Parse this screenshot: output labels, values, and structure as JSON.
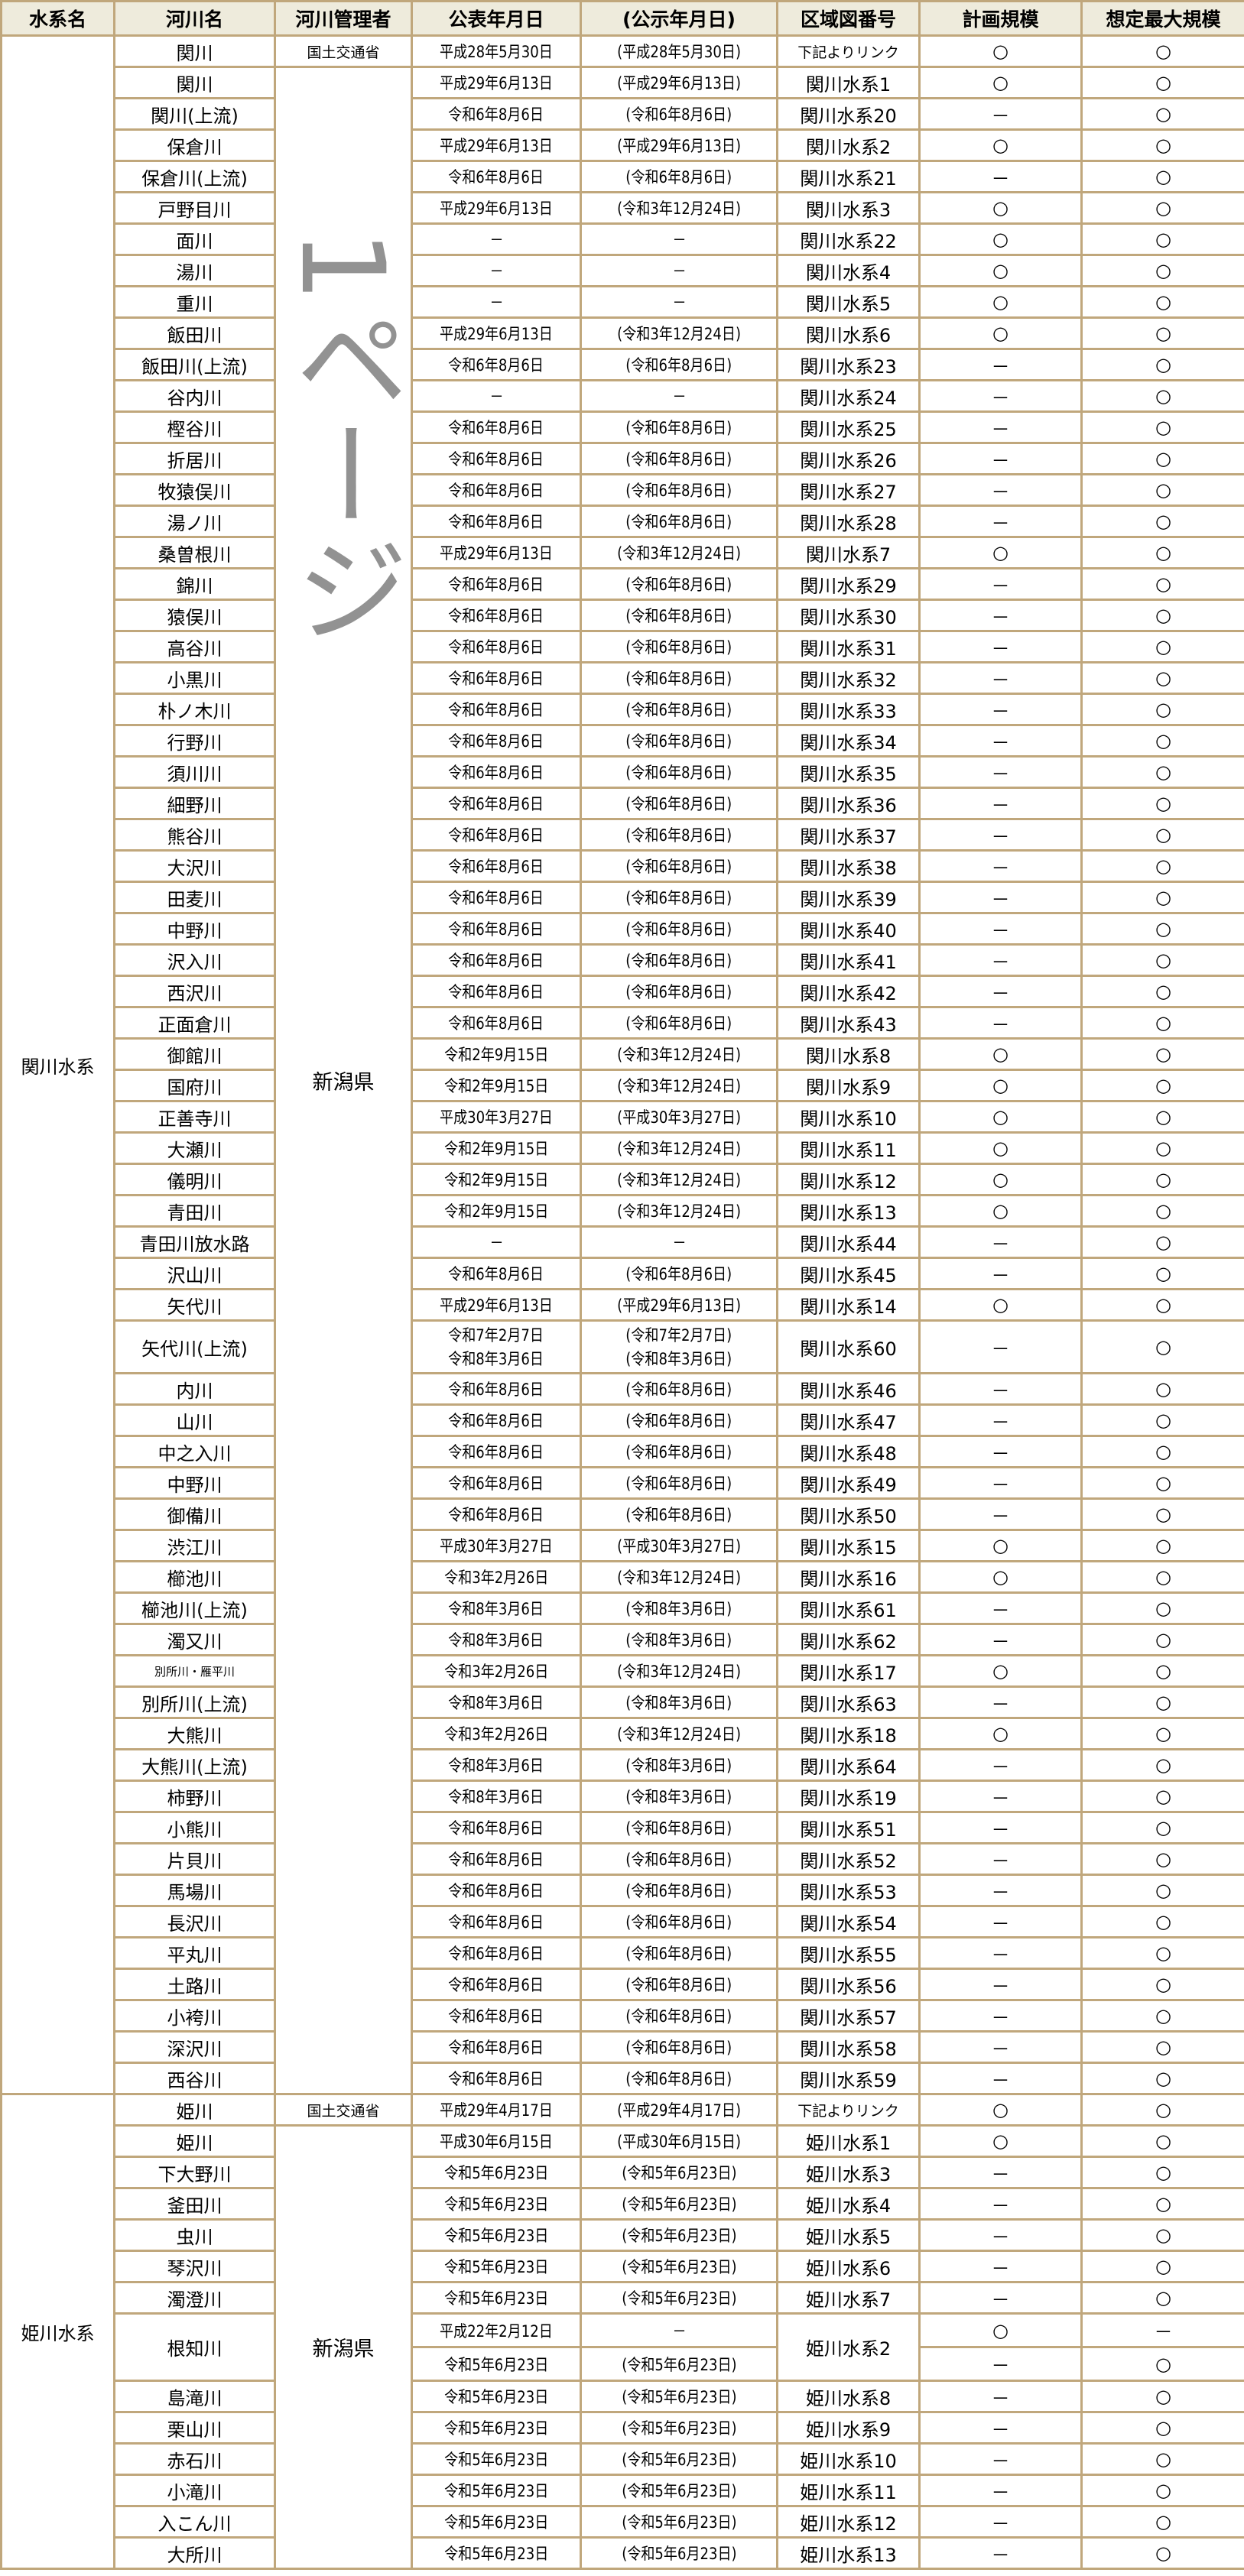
{
  "headers": [
    "水系名",
    "河川名",
    "河川管理者",
    "公表年月日",
    "(公示年月日)",
    "区域図番号",
    "計画規模",
    "想定最大規模"
  ],
  "watermark": "1ページ",
  "colors": {
    "header_bg": "#eeebdc",
    "border": "#c0a77c"
  },
  "groups": [
    {
      "system": "関川水系",
      "national_manager": "国土交通省",
      "prefecture_manager": "新潟県",
      "rows": [
        {
          "river": "関川",
          "published": [
            "平成28年5月30日"
          ],
          "notice": [
            "(平成28年5月30日)"
          ],
          "map": "下記よりリンク",
          "plan": "○",
          "max": "○"
        },
        {
          "river": "関川",
          "published": [
            "平成29年6月13日"
          ],
          "notice": [
            "(平成29年6月13日)"
          ],
          "map": "関川水系1",
          "plan": "○",
          "max": "○"
        },
        {
          "river": "関川(上流)",
          "published": [
            "令和6年8月6日"
          ],
          "notice": [
            "(令和6年8月6日)"
          ],
          "map": "関川水系20",
          "plan": "－",
          "max": "○"
        },
        {
          "river": "保倉川",
          "published": [
            "平成29年6月13日"
          ],
          "notice": [
            "(平成29年6月13日)"
          ],
          "map": "関川水系2",
          "plan": "○",
          "max": "○"
        },
        {
          "river": "保倉川(上流)",
          "published": [
            "令和6年8月6日"
          ],
          "notice": [
            "(令和6年8月6日)"
          ],
          "map": "関川水系21",
          "plan": "－",
          "max": "○"
        },
        {
          "river": "戸野目川",
          "published": [
            "平成29年6月13日"
          ],
          "notice": [
            "(令和3年12月24日)"
          ],
          "map": "関川水系3",
          "plan": "○",
          "max": "○"
        },
        {
          "river": "面川",
          "published": [
            "－"
          ],
          "notice": [
            "－"
          ],
          "map": "関川水系22",
          "plan": "○",
          "max": "○"
        },
        {
          "river": "湯川",
          "published": [
            "－"
          ],
          "notice": [
            "－"
          ],
          "map": "関川水系4",
          "plan": "○",
          "max": "○"
        },
        {
          "river": "重川",
          "published": [
            "－"
          ],
          "notice": [
            "－"
          ],
          "map": "関川水系5",
          "plan": "○",
          "max": "○"
        },
        {
          "river": "飯田川",
          "published": [
            "平成29年6月13日"
          ],
          "notice": [
            "(令和3年12月24日)"
          ],
          "map": "関川水系6",
          "plan": "○",
          "max": "○"
        },
        {
          "river": "飯田川(上流)",
          "published": [
            "令和6年8月6日"
          ],
          "notice": [
            "(令和6年8月6日)"
          ],
          "map": "関川水系23",
          "plan": "－",
          "max": "○"
        },
        {
          "river": "谷内川",
          "published": [
            "－"
          ],
          "notice": [
            "－"
          ],
          "map": "関川水系24",
          "plan": "－",
          "max": "○"
        },
        {
          "river": "樫谷川",
          "published": [
            "令和6年8月6日"
          ],
          "notice": [
            "(令和6年8月6日)"
          ],
          "map": "関川水系25",
          "plan": "－",
          "max": "○"
        },
        {
          "river": "折居川",
          "published": [
            "令和6年8月6日"
          ],
          "notice": [
            "(令和6年8月6日)"
          ],
          "map": "関川水系26",
          "plan": "－",
          "max": "○"
        },
        {
          "river": "牧猿俣川",
          "published": [
            "令和6年8月6日"
          ],
          "notice": [
            "(令和6年8月6日)"
          ],
          "map": "関川水系27",
          "plan": "－",
          "max": "○"
        },
        {
          "river": "湯ノ川",
          "published": [
            "令和6年8月6日"
          ],
          "notice": [
            "(令和6年8月6日)"
          ],
          "map": "関川水系28",
          "plan": "－",
          "max": "○"
        },
        {
          "river": "桑曽根川",
          "published": [
            "平成29年6月13日"
          ],
          "notice": [
            "(令和3年12月24日)"
          ],
          "map": "関川水系7",
          "plan": "○",
          "max": "○"
        },
        {
          "river": "錦川",
          "published": [
            "令和6年8月6日"
          ],
          "notice": [
            "(令和6年8月6日)"
          ],
          "map": "関川水系29",
          "plan": "－",
          "max": "○"
        },
        {
          "river": "猿俣川",
          "published": [
            "令和6年8月6日"
          ],
          "notice": [
            "(令和6年8月6日)"
          ],
          "map": "関川水系30",
          "plan": "－",
          "max": "○"
        },
        {
          "river": "高谷川",
          "published": [
            "令和6年8月6日"
          ],
          "notice": [
            "(令和6年8月6日)"
          ],
          "map": "関川水系31",
          "plan": "－",
          "max": "○"
        },
        {
          "river": "小黒川",
          "published": [
            "令和6年8月6日"
          ],
          "notice": [
            "(令和6年8月6日)"
          ],
          "map": "関川水系32",
          "plan": "－",
          "max": "○"
        },
        {
          "river": "朴ノ木川",
          "published": [
            "令和6年8月6日"
          ],
          "notice": [
            "(令和6年8月6日)"
          ],
          "map": "関川水系33",
          "plan": "－",
          "max": "○"
        },
        {
          "river": "行野川",
          "published": [
            "令和6年8月6日"
          ],
          "notice": [
            "(令和6年8月6日)"
          ],
          "map": "関川水系34",
          "plan": "－",
          "max": "○"
        },
        {
          "river": "須川川",
          "published": [
            "令和6年8月6日"
          ],
          "notice": [
            "(令和6年8月6日)"
          ],
          "map": "関川水系35",
          "plan": "－",
          "max": "○"
        },
        {
          "river": "細野川",
          "published": [
            "令和6年8月6日"
          ],
          "notice": [
            "(令和6年8月6日)"
          ],
          "map": "関川水系36",
          "plan": "－",
          "max": "○"
        },
        {
          "river": "熊谷川",
          "published": [
            "令和6年8月6日"
          ],
          "notice": [
            "(令和6年8月6日)"
          ],
          "map": "関川水系37",
          "plan": "－",
          "max": "○"
        },
        {
          "river": "大沢川",
          "published": [
            "令和6年8月6日"
          ],
          "notice": [
            "(令和6年8月6日)"
          ],
          "map": "関川水系38",
          "plan": "－",
          "max": "○"
        },
        {
          "river": "田麦川",
          "published": [
            "令和6年8月6日"
          ],
          "notice": [
            "(令和6年8月6日)"
          ],
          "map": "関川水系39",
          "plan": "－",
          "max": "○"
        },
        {
          "river": "中野川",
          "published": [
            "令和6年8月6日"
          ],
          "notice": [
            "(令和6年8月6日)"
          ],
          "map": "関川水系40",
          "plan": "－",
          "max": "○"
        },
        {
          "river": "沢入川",
          "published": [
            "令和6年8月6日"
          ],
          "notice": [
            "(令和6年8月6日)"
          ],
          "map": "関川水系41",
          "plan": "－",
          "max": "○"
        },
        {
          "river": "西沢川",
          "published": [
            "令和6年8月6日"
          ],
          "notice": [
            "(令和6年8月6日)"
          ],
          "map": "関川水系42",
          "plan": "－",
          "max": "○"
        },
        {
          "river": "正面倉川",
          "published": [
            "令和6年8月6日"
          ],
          "notice": [
            "(令和6年8月6日)"
          ],
          "map": "関川水系43",
          "plan": "－",
          "max": "○"
        },
        {
          "river": "御館川",
          "published": [
            "令和2年9月15日"
          ],
          "notice": [
            "(令和3年12月24日)"
          ],
          "map": "関川水系8",
          "plan": "○",
          "max": "○"
        },
        {
          "river": "国府川",
          "published": [
            "令和2年9月15日"
          ],
          "notice": [
            "(令和3年12月24日)"
          ],
          "map": "関川水系9",
          "plan": "○",
          "max": "○"
        },
        {
          "river": "正善寺川",
          "published": [
            "平成30年3月27日"
          ],
          "notice": [
            "(平成30年3月27日)"
          ],
          "map": "関川水系10",
          "plan": "○",
          "max": "○"
        },
        {
          "river": "大瀬川",
          "published": [
            "令和2年9月15日"
          ],
          "notice": [
            "(令和3年12月24日)"
          ],
          "map": "関川水系11",
          "plan": "○",
          "max": "○"
        },
        {
          "river": "儀明川",
          "published": [
            "令和2年9月15日"
          ],
          "notice": [
            "(令和3年12月24日)"
          ],
          "map": "関川水系12",
          "plan": "○",
          "max": "○"
        },
        {
          "river": "青田川",
          "published": [
            "令和2年9月15日"
          ],
          "notice": [
            "(令和3年12月24日)"
          ],
          "map": "関川水系13",
          "plan": "○",
          "max": "○"
        },
        {
          "river": "青田川放水路",
          "published": [
            "－"
          ],
          "notice": [
            "－"
          ],
          "map": "関川水系44",
          "plan": "－",
          "max": "○"
        },
        {
          "river": "沢山川",
          "published": [
            "令和6年8月6日"
          ],
          "notice": [
            "(令和6年8月6日)"
          ],
          "map": "関川水系45",
          "plan": "－",
          "max": "○"
        },
        {
          "river": "矢代川",
          "published": [
            "平成29年6月13日"
          ],
          "notice": [
            "(平成29年6月13日)"
          ],
          "map": "関川水系14",
          "plan": "○",
          "max": "○"
        },
        {
          "river": "矢代川(上流)",
          "published": [
            "令和7年2月7日",
            "令和8年3月6日"
          ],
          "notice": [
            "(令和7年2月7日)",
            "(令和8年3月6日)"
          ],
          "map": "関川水系60",
          "plan": "－",
          "max": "○"
        },
        {
          "river": "内川",
          "published": [
            "令和6年8月6日"
          ],
          "notice": [
            "(令和6年8月6日)"
          ],
          "map": "関川水系46",
          "plan": "－",
          "max": "○"
        },
        {
          "river": "山川",
          "published": [
            "令和6年8月6日"
          ],
          "notice": [
            "(令和6年8月6日)"
          ],
          "map": "関川水系47",
          "plan": "－",
          "max": "○"
        },
        {
          "river": "中之入川",
          "published": [
            "令和6年8月6日"
          ],
          "notice": [
            "(令和6年8月6日)"
          ],
          "map": "関川水系48",
          "plan": "－",
          "max": "○"
        },
        {
          "river": "中野川",
          "published": [
            "令和6年8月6日"
          ],
          "notice": [
            "(令和6年8月6日)"
          ],
          "map": "関川水系49",
          "plan": "－",
          "max": "○"
        },
        {
          "river": "御備川",
          "published": [
            "令和6年8月6日"
          ],
          "notice": [
            "(令和6年8月6日)"
          ],
          "map": "関川水系50",
          "plan": "－",
          "max": "○"
        },
        {
          "river": "渋江川",
          "published": [
            "平成30年3月27日"
          ],
          "notice": [
            "(平成30年3月27日)"
          ],
          "map": "関川水系15",
          "plan": "○",
          "max": "○"
        },
        {
          "river": "櫛池川",
          "published": [
            "令和3年2月26日"
          ],
          "notice": [
            "(令和3年12月24日)"
          ],
          "map": "関川水系16",
          "plan": "○",
          "max": "○"
        },
        {
          "river": "櫛池川(上流)",
          "published": [
            "令和8年3月6日"
          ],
          "notice": [
            "(令和8年3月6日)"
          ],
          "map": "関川水系61",
          "plan": "－",
          "max": "○"
        },
        {
          "river": "濁又川",
          "published": [
            "令和8年3月6日"
          ],
          "notice": [
            "(令和8年3月6日)"
          ],
          "map": "関川水系62",
          "plan": "－",
          "max": "○"
        },
        {
          "river": "別所川・雁平川",
          "published": [
            "令和3年2月26日"
          ],
          "notice": [
            "(令和3年12月24日)"
          ],
          "map": "関川水系17",
          "plan": "○",
          "max": "○",
          "tiny": true
        },
        {
          "river": "別所川(上流)",
          "published": [
            "令和8年3月6日"
          ],
          "notice": [
            "(令和8年3月6日)"
          ],
          "map": "関川水系63",
          "plan": "－",
          "max": "○"
        },
        {
          "river": "大熊川",
          "published": [
            "令和3年2月26日"
          ],
          "notice": [
            "(令和3年12月24日)"
          ],
          "map": "関川水系18",
          "plan": "○",
          "max": "○"
        },
        {
          "river": "大熊川(上流)",
          "published": [
            "令和8年3月6日"
          ],
          "notice": [
            "(令和8年3月6日)"
          ],
          "map": "関川水系64",
          "plan": "－",
          "max": "○"
        },
        {
          "river": "柿野川",
          "published": [
            "令和8年3月6日"
          ],
          "notice": [
            "(令和8年3月6日)"
          ],
          "map": "関川水系19",
          "plan": "－",
          "max": "○"
        },
        {
          "river": "小熊川",
          "published": [
            "令和6年8月6日"
          ],
          "notice": [
            "(令和6年8月6日)"
          ],
          "map": "関川水系51",
          "plan": "－",
          "max": "○"
        },
        {
          "river": "片貝川",
          "published": [
            "令和6年8月6日"
          ],
          "notice": [
            "(令和6年8月6日)"
          ],
          "map": "関川水系52",
          "plan": "－",
          "max": "○"
        },
        {
          "river": "馬場川",
          "published": [
            "令和6年8月6日"
          ],
          "notice": [
            "(令和6年8月6日)"
          ],
          "map": "関川水系53",
          "plan": "－",
          "max": "○"
        },
        {
          "river": "長沢川",
          "published": [
            "令和6年8月6日"
          ],
          "notice": [
            "(令和6年8月6日)"
          ],
          "map": "関川水系54",
          "plan": "－",
          "max": "○"
        },
        {
          "river": "平丸川",
          "published": [
            "令和6年8月6日"
          ],
          "notice": [
            "(令和6年8月6日)"
          ],
          "map": "関川水系55",
          "plan": "－",
          "max": "○"
        },
        {
          "river": "土路川",
          "published": [
            "令和6年8月6日"
          ],
          "notice": [
            "(令和6年8月6日)"
          ],
          "map": "関川水系56",
          "plan": "－",
          "max": "○"
        },
        {
          "river": "小袴川",
          "published": [
            "令和6年8月6日"
          ],
          "notice": [
            "(令和6年8月6日)"
          ],
          "map": "関川水系57",
          "plan": "－",
          "max": "○"
        },
        {
          "river": "深沢川",
          "published": [
            "令和6年8月6日"
          ],
          "notice": [
            "(令和6年8月6日)"
          ],
          "map": "関川水系58",
          "plan": "－",
          "max": "○"
        },
        {
          "river": "西谷川",
          "published": [
            "令和6年8月6日"
          ],
          "notice": [
            "(令和6年8月6日)"
          ],
          "map": "関川水系59",
          "plan": "－",
          "max": "○"
        }
      ]
    },
    {
      "system": "姫川水系",
      "national_manager": "国土交通省",
      "prefecture_manager": "新潟県",
      "rows": [
        {
          "river": "姫川",
          "published": [
            "平成29年4月17日"
          ],
          "notice": [
            "(平成29年4月17日)"
          ],
          "map": "下記よりリンク",
          "plan": "○",
          "max": "○"
        },
        {
          "river": "姫川",
          "published": [
            "平成30年6月15日"
          ],
          "notice": [
            "(平成30年6月15日)"
          ],
          "map": "姫川水系1",
          "plan": "○",
          "max": "○"
        },
        {
          "river": "下大野川",
          "published": [
            "令和5年6月23日"
          ],
          "notice": [
            "(令和5年6月23日)"
          ],
          "map": "姫川水系3",
          "plan": "－",
          "max": "○"
        },
        {
          "river": "釜田川",
          "published": [
            "令和5年6月23日"
          ],
          "notice": [
            "(令和5年6月23日)"
          ],
          "map": "姫川水系4",
          "plan": "－",
          "max": "○"
        },
        {
          "river": "虫川",
          "published": [
            "令和5年6月23日"
          ],
          "notice": [
            "(令和5年6月23日)"
          ],
          "map": "姫川水系5",
          "plan": "－",
          "max": "○"
        },
        {
          "river": "琴沢川",
          "published": [
            "令和5年6月23日"
          ],
          "notice": [
            "(令和5年6月23日)"
          ],
          "map": "姫川水系6",
          "plan": "－",
          "max": "○"
        },
        {
          "river": "濁澄川",
          "published": [
            "令和5年6月23日"
          ],
          "notice": [
            "(令和5年6月23日)"
          ],
          "map": "姫川水系7",
          "plan": "－",
          "max": "○"
        },
        {
          "river": "根知川",
          "map": "姫川水系2",
          "sub": [
            {
              "published": "平成22年2月12日",
              "notice": "－",
              "plan": "○",
              "max": "－"
            },
            {
              "published": "令和5年6月23日",
              "notice": "(令和5年6月23日)",
              "plan": "－",
              "max": "○"
            }
          ]
        },
        {
          "river": "島滝川",
          "published": [
            "令和5年6月23日"
          ],
          "notice": [
            "(令和5年6月23日)"
          ],
          "map": "姫川水系8",
          "plan": "－",
          "max": "○"
        },
        {
          "river": "栗山川",
          "published": [
            "令和5年6月23日"
          ],
          "notice": [
            "(令和5年6月23日)"
          ],
          "map": "姫川水系9",
          "plan": "－",
          "max": "○"
        },
        {
          "river": "赤石川",
          "published": [
            "令和5年6月23日"
          ],
          "notice": [
            "(令和5年6月23日)"
          ],
          "map": "姫川水系10",
          "plan": "－",
          "max": "○"
        },
        {
          "river": "小滝川",
          "published": [
            "令和5年6月23日"
          ],
          "notice": [
            "(令和5年6月23日)"
          ],
          "map": "姫川水系11",
          "plan": "－",
          "max": "○"
        },
        {
          "river": "入こん川",
          "published": [
            "令和5年6月23日"
          ],
          "notice": [
            "(令和5年6月23日)"
          ],
          "map": "姫川水系12",
          "plan": "－",
          "max": "○"
        },
        {
          "river": "大所川",
          "published": [
            "令和5年6月23日"
          ],
          "notice": [
            "(令和5年6月23日)"
          ],
          "map": "姫川水系13",
          "plan": "－",
          "max": "○"
        }
      ]
    }
  ]
}
